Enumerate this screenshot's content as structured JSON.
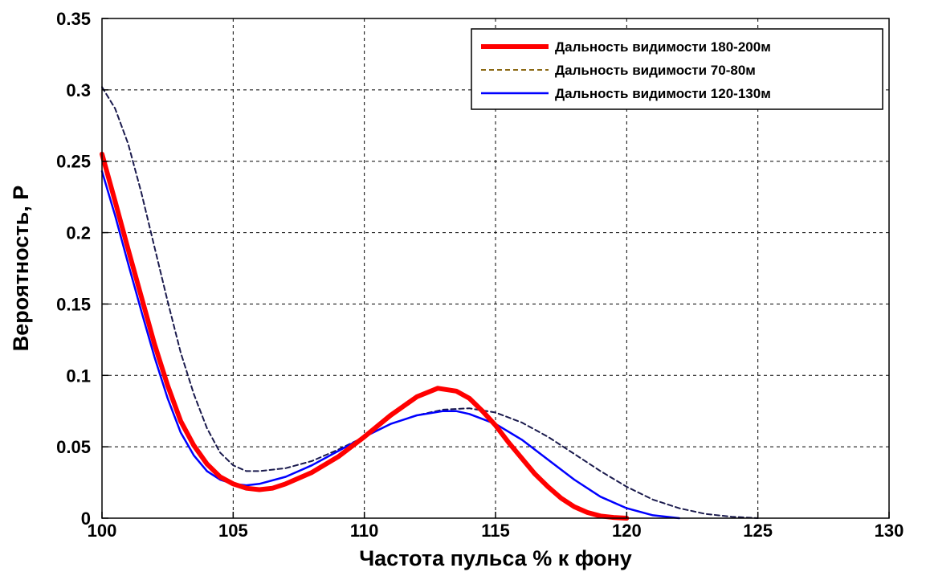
{
  "chart_data": {
    "type": "line",
    "title": "",
    "xlabel": "Частота пульса % к фону",
    "ylabel": "Вероятность, P",
    "xlim": [
      100,
      130
    ],
    "ylim": [
      0,
      0.35
    ],
    "xticks": [
      100,
      105,
      110,
      115,
      120,
      125,
      130
    ],
    "yticks": [
      0,
      0.05,
      0.1,
      0.15,
      0.2,
      0.25,
      0.3,
      0.35
    ],
    "xtick_labels": [
      "100",
      "105",
      "110",
      "115",
      "120",
      "125",
      "130"
    ],
    "ytick_labels": [
      "0",
      "0.05",
      "0.1",
      "0.15",
      "0.2",
      "0.25",
      "0.3",
      "0.35"
    ],
    "grid": true,
    "legend_position": "top-right",
    "series": [
      {
        "name": "Дальность видимости 180-200м",
        "color": "#ff0000",
        "style": "solid-thick",
        "x": [
          100,
          100.5,
          101,
          101.5,
          102,
          102.5,
          103,
          103.5,
          104,
          104.5,
          105,
          105.5,
          106,
          106.5,
          107,
          108,
          109,
          110,
          111,
          112,
          112.8,
          113.5,
          114,
          114.5,
          115,
          115.5,
          116,
          116.5,
          117,
          117.5,
          118,
          118.5,
          119,
          119.5,
          120
        ],
        "y": [
          0.255,
          0.222,
          0.188,
          0.155,
          0.122,
          0.093,
          0.068,
          0.051,
          0.038,
          0.029,
          0.024,
          0.021,
          0.02,
          0.021,
          0.024,
          0.032,
          0.043,
          0.057,
          0.072,
          0.085,
          0.091,
          0.089,
          0.084,
          0.075,
          0.065,
          0.053,
          0.042,
          0.031,
          0.022,
          0.014,
          0.008,
          0.004,
          0.0015,
          0.0005,
          0.0
        ]
      },
      {
        "name": "Дальность видимости 70-80м",
        "color": "#1a1a4d",
        "legend_color": "#8b6914",
        "style": "dashed",
        "x": [
          100,
          100.5,
          101,
          101.5,
          102,
          102.5,
          103,
          103.5,
          104,
          104.5,
          105,
          105.5,
          106,
          107,
          108,
          109,
          110,
          111,
          112,
          113,
          114,
          115,
          116,
          117,
          118,
          119,
          120,
          121,
          122,
          123,
          124,
          125
        ],
        "y": [
          0.302,
          0.287,
          0.262,
          0.228,
          0.19,
          0.152,
          0.116,
          0.087,
          0.063,
          0.046,
          0.037,
          0.033,
          0.033,
          0.035,
          0.04,
          0.048,
          0.057,
          0.066,
          0.072,
          0.076,
          0.077,
          0.074,
          0.067,
          0.057,
          0.045,
          0.033,
          0.022,
          0.013,
          0.007,
          0.003,
          0.001,
          0.0
        ]
      },
      {
        "name": "Дальность видимости 120-130м",
        "color": "#0000ff",
        "style": "solid",
        "x": [
          100,
          100.5,
          101,
          101.5,
          102,
          102.5,
          103,
          103.5,
          104,
          104.5,
          105,
          105.5,
          106,
          107,
          108,
          109,
          110,
          111,
          112,
          113,
          113.5,
          114,
          115,
          116,
          117,
          118,
          119,
          120,
          121,
          122
        ],
        "y": [
          0.243,
          0.212,
          0.178,
          0.145,
          0.113,
          0.084,
          0.06,
          0.044,
          0.033,
          0.027,
          0.024,
          0.023,
          0.024,
          0.029,
          0.037,
          0.047,
          0.057,
          0.066,
          0.072,
          0.075,
          0.075,
          0.073,
          0.066,
          0.055,
          0.041,
          0.027,
          0.015,
          0.007,
          0.002,
          0.0
        ]
      }
    ]
  }
}
